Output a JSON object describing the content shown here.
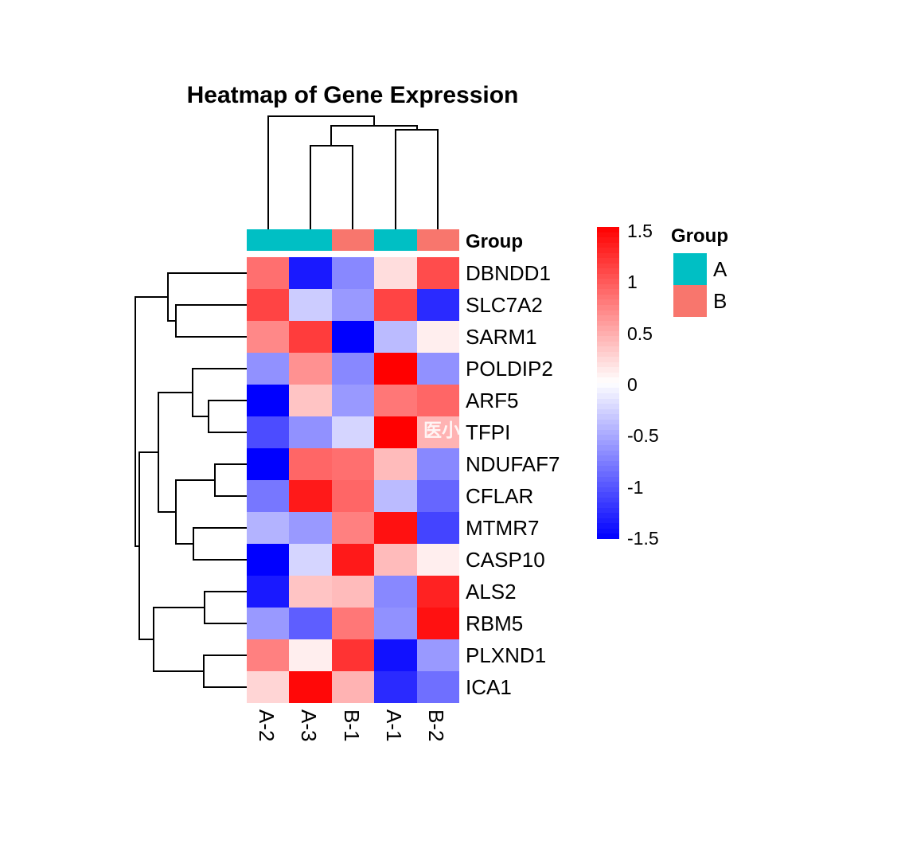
{
  "title": "Heatmap of Gene Expression",
  "watermark": "医小",
  "annotation_track_label": "Group",
  "chart_data": {
    "type": "heatmap",
    "title": "Heatmap of Gene Expression",
    "columns": [
      "A-2",
      "A-3",
      "B-1",
      "A-1",
      "B-2"
    ],
    "rows": [
      "DBNDD1",
      "SLC7A2",
      "SARM1",
      "POLDIP2",
      "ARF5",
      "TFPI",
      "NDUFAF7",
      "CFLAR",
      "MTMR7",
      "CASP10",
      "ALS2",
      "RBM5",
      "PLXND1",
      "ICA1"
    ],
    "column_groups": [
      "A",
      "A",
      "B",
      "A",
      "B"
    ],
    "values": [
      [
        0.85,
        -1.35,
        -0.7,
        0.2,
        1.05
      ],
      [
        1.1,
        -0.3,
        -0.6,
        1.1,
        -1.25
      ],
      [
        0.7,
        1.15,
        -1.5,
        -0.4,
        0.1
      ],
      [
        -0.65,
        0.65,
        -0.7,
        1.5,
        -0.65
      ],
      [
        -1.5,
        0.35,
        -0.6,
        0.8,
        0.9
      ],
      [
        -1.05,
        -0.65,
        -0.25,
        1.5,
        0.45
      ],
      [
        -1.5,
        0.9,
        0.85,
        0.4,
        -0.7
      ],
      [
        -0.8,
        1.35,
        0.9,
        -0.4,
        -0.9
      ],
      [
        -0.45,
        -0.6,
        0.75,
        1.4,
        -1.1
      ],
      [
        -1.5,
        -0.25,
        1.35,
        0.4,
        0.1
      ],
      [
        -1.35,
        0.35,
        0.4,
        -0.7,
        1.3
      ],
      [
        -0.6,
        -0.95,
        0.8,
        -0.65,
        1.4
      ],
      [
        0.75,
        0.1,
        1.2,
        -1.4,
        -0.6
      ],
      [
        0.25,
        1.45,
        0.45,
        -1.25,
        -0.85
      ]
    ],
    "zlim": [
      -1.5,
      1.5
    ],
    "colormap": {
      "low": "#0000FF",
      "mid": "#FFFFFF",
      "high": "#FF0000"
    },
    "legend_ticks": [
      "1.5",
      "1",
      "0.5",
      "0",
      "-0.5",
      "-1",
      "-1.5"
    ],
    "group_legend": {
      "title": "Group",
      "items": [
        {
          "label": "A",
          "color": "#00BFC4"
        },
        {
          "label": "B",
          "color": "#F8766D"
        }
      ]
    },
    "dendrogram_line_color": "#000000",
    "col_dendrogram_segments": [
      [
        337,
        288,
        337,
        146
      ],
      [
        390,
        288,
        390,
        183
      ],
      [
        443,
        288,
        443,
        183
      ],
      [
        390,
        183,
        443,
        183
      ],
      [
        416,
        183,
        416,
        158
      ],
      [
        497,
        288,
        497,
        163
      ],
      [
        550,
        288,
        550,
        163
      ],
      [
        497,
        163,
        550,
        163
      ],
      [
        524,
        163,
        524,
        158
      ],
      [
        416,
        158,
        524,
        158
      ],
      [
        470,
        158,
        470,
        146
      ],
      [
        337,
        146,
        470,
        146
      ]
    ],
    "row_dendrogram_segments": [
      [
        310,
        343,
        211,
        343
      ],
      [
        310,
        383,
        221,
        383
      ],
      [
        310,
        423,
        221,
        423
      ],
      [
        221,
        383,
        221,
        423
      ],
      [
        221,
        403,
        211,
        403
      ],
      [
        211,
        343,
        211,
        403
      ],
      [
        211,
        373,
        170,
        373
      ],
      [
        310,
        463,
        242,
        463
      ],
      [
        310,
        503,
        262,
        503
      ],
      [
        310,
        543,
        262,
        543
      ],
      [
        262,
        503,
        262,
        543
      ],
      [
        262,
        523,
        242,
        523
      ],
      [
        242,
        463,
        242,
        523
      ],
      [
        242,
        493,
        199,
        493
      ],
      [
        310,
        583,
        270,
        583
      ],
      [
        310,
        623,
        270,
        623
      ],
      [
        270,
        583,
        270,
        623
      ],
      [
        270,
        603,
        221,
        603
      ],
      [
        310,
        663,
        243,
        663
      ],
      [
        310,
        703,
        243,
        703
      ],
      [
        243,
        663,
        243,
        703
      ],
      [
        243,
        683,
        221,
        683
      ],
      [
        221,
        603,
        221,
        683
      ],
      [
        221,
        643,
        199,
        643
      ],
      [
        199,
        493,
        199,
        643
      ],
      [
        199,
        568,
        175,
        568
      ],
      [
        310,
        743,
        257,
        743
      ],
      [
        310,
        783,
        257,
        783
      ],
      [
        257,
        743,
        257,
        783
      ],
      [
        257,
        763,
        193,
        763
      ],
      [
        310,
        823,
        256,
        823
      ],
      [
        310,
        863,
        256,
        863
      ],
      [
        256,
        823,
        256,
        863
      ],
      [
        256,
        843,
        193,
        843
      ],
      [
        193,
        763,
        193,
        843
      ],
      [
        193,
        803,
        175,
        803
      ],
      [
        175,
        568,
        175,
        803
      ],
      [
        175,
        686,
        170,
        686
      ],
      [
        170,
        373,
        170,
        686
      ]
    ]
  }
}
